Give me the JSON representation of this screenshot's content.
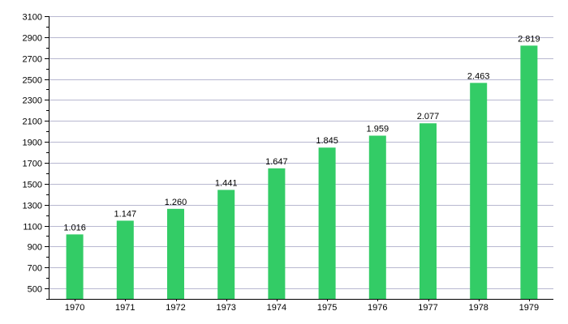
{
  "chart_data": {
    "type": "bar",
    "categories": [
      "1970",
      "1971",
      "1972",
      "1973",
      "1974",
      "1975",
      "1976",
      "1977",
      "1978",
      "1979"
    ],
    "values": [
      1016,
      1147,
      1260,
      1441,
      1647,
      1845,
      1959,
      2077,
      2463,
      2819
    ],
    "data_labels": [
      "1.016",
      "1.147",
      "1.260",
      "1.441",
      "1.647",
      "1.845",
      "1.959",
      "2.077",
      "2.463",
      "2.819"
    ],
    "title": "",
    "xlabel": "",
    "ylabel": "",
    "ylim": [
      400,
      3100
    ],
    "yticks": [
      500,
      700,
      900,
      1100,
      1300,
      1500,
      1700,
      1900,
      2100,
      2300,
      2500,
      2700,
      2900,
      3100
    ],
    "ytick_labels": [
      "500",
      "700",
      "900",
      "1100",
      "1300",
      "1500",
      "1700",
      "1900",
      "2100",
      "2300",
      "2500",
      "2700",
      "2900",
      "3100"
    ],
    "grid": true,
    "bar_color": "#33cc66",
    "grid_color": "#b8b8d0"
  }
}
